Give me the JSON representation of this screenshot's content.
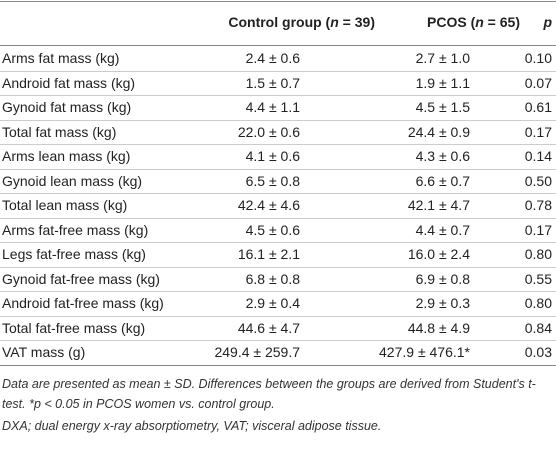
{
  "table": {
    "header": [
      null,
      [
        "Control group (",
        "n",
        " = 39)"
      ],
      [
        "PCOS (",
        "n",
        " = 65)"
      ],
      "p"
    ],
    "rows": [
      [
        "Arms fat mass (kg)",
        "2.4 ± 0.6",
        "2.7 ± 1.0",
        "0.10"
      ],
      [
        "Android fat mass (kg)",
        "1.5 ± 0.7",
        "1.9 ± 1.1",
        "0.07"
      ],
      [
        "Gynoid fat mass (kg)",
        "4.4 ± 1.1",
        "4.5 ± 1.5",
        "0.61"
      ],
      [
        "Total fat mass (kg)",
        "22.0 ± 0.6",
        "24.4 ± 0.9",
        "0.17"
      ],
      [
        "Arms lean mass (kg)",
        "4.1 ± 0.6",
        "4.3 ± 0.6",
        "0.14"
      ],
      [
        "Gynoid lean mass (kg)",
        "6.5 ± 0.8",
        "6.6 ± 0.7",
        "0.50"
      ],
      [
        "Total lean mass (kg)",
        "42.4 ± 4.6",
        "42.1 ± 4.7",
        "0.78"
      ],
      [
        "Arms fat-free mass (kg)",
        "4.5 ± 0.6",
        "4.4 ± 0.7",
        "0.17"
      ],
      [
        "Legs fat-free mass (kg)",
        "16.1 ± 2.1",
        "16.0 ± 2.4",
        "0.80"
      ],
      [
        "Gynoid fat-free mass (kg)",
        "6.8 ± 0.8",
        "6.9 ± 0.8",
        "0.55"
      ],
      [
        "Android fat-free mass (kg)",
        "2.9 ± 0.4",
        "2.9 ± 0.3",
        "0.80"
      ],
      [
        "Total fat-free mass (kg)",
        "44.6 ± 4.7",
        "44.8 ± 4.9",
        "0.84"
      ],
      [
        "VAT mass (g)",
        "249.4 ± 259.7",
        "427.9 ± 476.1*",
        "0.03"
      ]
    ],
    "notes": [
      "Data are presented as mean ± SD. Differences between the groups are derived from Student's t-test. *p < 0.05 in PCOS women vs. control group.",
      "DXA; dual energy x-ray absorptiometry, VAT; visceral adipose tissue."
    ]
  }
}
